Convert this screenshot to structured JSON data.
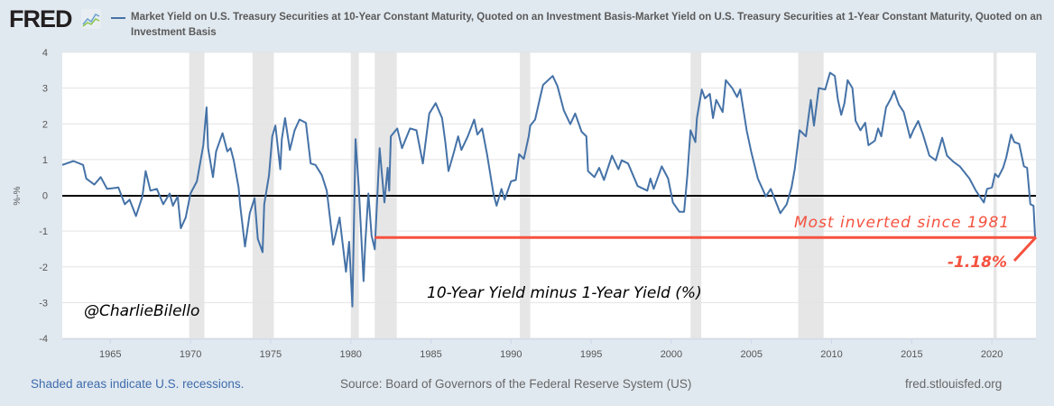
{
  "header": {
    "logo": "FRED",
    "logo_icon": "line-chart-icon",
    "legend_text": "Market Yield on U.S. Treasury Securities at 10-Year Constant Maturity, Quoted on an Investment Basis-Market Yield on U.S. Treasury Securities at 1-Year Constant Maturity, Quoted on an Investment Basis"
  },
  "footer": {
    "recession_note": "Shaded areas indicate U.S. recessions.",
    "source": "Source: Board of Governors of the Federal Reserve System (US)",
    "site": "fred.stlouisfed.org"
  },
  "annotations": {
    "handle": "@CharlieBilello",
    "chart_caption": "10-Year Yield minus 1-Year Yield (%)",
    "callout": "Most inverted since 1981",
    "latest_value": "-1.18%"
  },
  "colors": {
    "series": "#4572a7",
    "annotation": "#f5523f",
    "recession": "#e6e6e6",
    "zero_line": "#000000"
  },
  "chart_data": {
    "type": "line",
    "ylabel": "%-%",
    "xlim": [
      1962.0,
      2022.75
    ],
    "ylim": [
      -4,
      4
    ],
    "grid": true,
    "xticks": [
      1965,
      1970,
      1975,
      1980,
      1985,
      1990,
      1995,
      2000,
      2005,
      2010,
      2015,
      2020
    ],
    "yticks": [
      4,
      3,
      2,
      1,
      0,
      -1,
      -2,
      -3,
      -4
    ],
    "recessions": [
      [
        1969.92,
        1970.87
      ],
      [
        1973.87,
        1975.2
      ],
      [
        1980.0,
        1980.5
      ],
      [
        1981.5,
        1982.87
      ],
      [
        1990.55,
        1991.2
      ],
      [
        2001.2,
        2001.87
      ],
      [
        2007.92,
        2009.5
      ],
      [
        2020.1,
        2020.3
      ]
    ],
    "reference_line": {
      "value": -1.18,
      "from": 1981.5
    },
    "series": [
      {
        "x": [
          1962.0,
          1962.7,
          1963.3,
          1963.5,
          1964.0,
          1964.4,
          1964.8,
          1965.5,
          1965.9,
          1966.2,
          1966.6,
          1967.0,
          1967.2,
          1967.5,
          1967.9,
          1968.3,
          1968.7,
          1968.9,
          1969.2,
          1969.4,
          1969.7,
          1970.0,
          1970.4,
          1970.8,
          1971.0,
          1971.1,
          1971.4,
          1971.6,
          1972.0,
          1972.3,
          1972.5,
          1972.7,
          1973.0,
          1973.1,
          1973.4,
          1973.7,
          1974.0,
          1974.2,
          1974.5,
          1974.6,
          1974.9,
          1975.1,
          1975.3,
          1975.6,
          1975.7,
          1975.9,
          1976.2,
          1976.5,
          1976.8,
          1977.2,
          1977.5,
          1977.8,
          1978.2,
          1978.5,
          1978.9,
          1979.3,
          1979.7,
          1979.9,
          1980.1,
          1980.3,
          1980.5,
          1980.8,
          1980.9,
          1981.1,
          1981.3,
          1981.5,
          1981.8,
          1982.1,
          1982.3,
          1982.4,
          1982.5,
          1982.9,
          1983.2,
          1983.7,
          1984.1,
          1984.5,
          1984.9,
          1985.3,
          1985.7,
          1985.9,
          1986.1,
          1986.4,
          1986.7,
          1986.9,
          1987.3,
          1987.7,
          1987.9,
          1988.2,
          1988.5,
          1988.9,
          1989.1,
          1989.4,
          1989.6,
          1990.0,
          1990.3,
          1990.5,
          1990.8,
          1991.1,
          1991.2,
          1991.5,
          1991.8,
          1992.0,
          1992.6,
          1992.9,
          1993.3,
          1993.7,
          1994.0,
          1994.4,
          1994.7,
          1994.8,
          1995.2,
          1995.5,
          1995.8,
          1996.3,
          1996.7,
          1996.9,
          1997.3,
          1997.9,
          1998.5,
          1998.7,
          1998.9,
          1999.4,
          1999.8,
          2000.1,
          2000.5,
          2000.8,
          2001.0,
          2001.2,
          2001.5,
          2001.6,
          2001.9,
          2002.1,
          2002.4,
          2002.6,
          2002.8,
          2003.2,
          2003.4,
          2003.8,
          2004.1,
          2004.3,
          2004.7,
          2005.0,
          2005.4,
          2005.9,
          2006.2,
          2006.8,
          2007.2,
          2007.5,
          2007.7,
          2008.0,
          2008.4,
          2008.7,
          2008.9,
          2009.2,
          2009.6,
          2009.9,
          2010.2,
          2010.4,
          2010.6,
          2010.8,
          2011.0,
          2011.3,
          2011.5,
          2011.8,
          2012.1,
          2012.3,
          2012.7,
          2012.9,
          2013.1,
          2013.4,
          2013.7,
          2013.9,
          2014.2,
          2014.5,
          2014.9,
          2015.1,
          2015.4,
          2015.7,
          2016.1,
          2016.5,
          2016.9,
          2017.2,
          2017.6,
          2018.0,
          2018.6,
          2019.0,
          2019.5,
          2019.7,
          2020.0,
          2020.2,
          2020.4,
          2020.7,
          2020.9,
          2021.2,
          2021.4,
          2021.7,
          2022.0,
          2022.2,
          2022.4,
          2022.6,
          2022.7
        ],
        "y": [
          0.85,
          0.96,
          0.85,
          0.47,
          0.3,
          0.51,
          0.18,
          0.22,
          -0.25,
          -0.12,
          -0.58,
          -0.03,
          0.68,
          0.13,
          0.18,
          -0.25,
          0.05,
          -0.29,
          -0.03,
          -0.92,
          -0.62,
          0.05,
          0.39,
          1.4,
          2.46,
          1.32,
          0.51,
          1.23,
          1.74,
          1.23,
          1.32,
          0.98,
          0.22,
          -0.29,
          -1.43,
          -0.5,
          -0.08,
          -1.22,
          -1.59,
          -0.25,
          0.56,
          1.65,
          1.95,
          0.73,
          1.57,
          2.16,
          1.27,
          1.82,
          2.12,
          2.03,
          0.89,
          0.85,
          0.56,
          0.13,
          -1.38,
          -0.62,
          -2.14,
          -1.3,
          -3.11,
          1.57,
          0.22,
          -2.4,
          -1.38,
          0.05,
          -1.13,
          -1.51,
          1.32,
          -0.2,
          0.77,
          0.13,
          1.65,
          1.87,
          1.32,
          1.87,
          1.82,
          0.89,
          2.29,
          2.58,
          2.16,
          1.49,
          0.68,
          1.15,
          1.65,
          1.27,
          1.65,
          2.12,
          1.7,
          1.87,
          1.15,
          0.05,
          -0.29,
          0.18,
          -0.12,
          0.39,
          0.43,
          1.15,
          1.02,
          1.65,
          1.95,
          2.12,
          2.71,
          3.09,
          3.34,
          3.05,
          2.37,
          1.99,
          2.29,
          1.78,
          1.65,
          0.68,
          0.51,
          0.77,
          0.43,
          1.11,
          0.73,
          0.98,
          0.89,
          0.26,
          0.13,
          0.47,
          0.18,
          0.81,
          0.47,
          -0.2,
          -0.46,
          -0.46,
          0.56,
          1.82,
          1.49,
          2.16,
          2.96,
          2.71,
          2.84,
          2.16,
          2.67,
          2.33,
          3.22,
          3.0,
          2.75,
          2.96,
          1.82,
          1.19,
          0.47,
          -0.03,
          0.18,
          -0.5,
          -0.25,
          0.22,
          0.73,
          1.82,
          1.65,
          2.67,
          1.95,
          3.0,
          2.96,
          3.43,
          3.34,
          2.67,
          2.25,
          2.58,
          3.22,
          3.0,
          2.08,
          1.82,
          2.03,
          1.4,
          1.53,
          1.87,
          1.65,
          2.46,
          2.71,
          2.92,
          2.54,
          2.33,
          1.61,
          1.82,
          2.08,
          1.7,
          1.11,
          0.98,
          1.61,
          1.11,
          0.94,
          0.81,
          0.47,
          0.13,
          -0.2,
          0.18,
          0.22,
          0.6,
          0.51,
          0.77,
          1.06,
          1.7,
          1.49,
          1.44,
          0.81,
          0.77,
          -0.25,
          -0.29,
          -1.18
        ]
      }
    ]
  }
}
